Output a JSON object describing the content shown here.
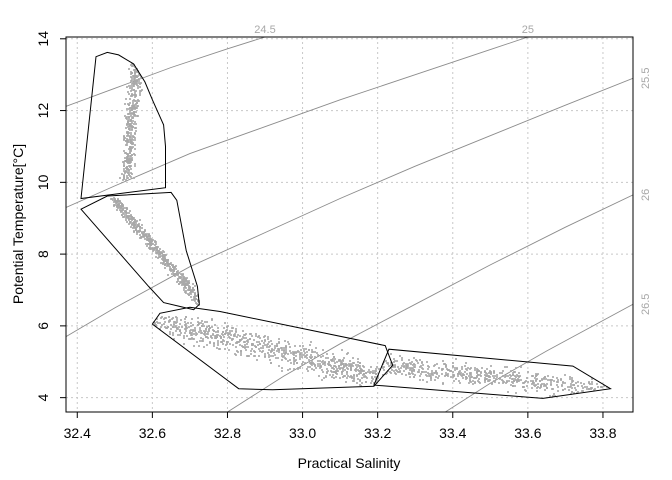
{
  "chart_data": {
    "type": "scatter",
    "title": "",
    "xlabel": "Practical Salinity",
    "ylabel": "Potential Temperature[°C]",
    "xlim": [
      32.37,
      33.88
    ],
    "ylim": [
      3.6,
      14.05
    ],
    "xticks": [
      32.4,
      32.6,
      32.8,
      33.0,
      33.2,
      33.4,
      33.6,
      33.8
    ],
    "xtick_labels": [
      "32.4",
      "32.6",
      "32.8",
      "33.0",
      "33.2",
      "33.4",
      "33.6",
      "33.8"
    ],
    "yticks": [
      4,
      6,
      8,
      10,
      12,
      14
    ],
    "ytick_labels": [
      "4",
      "6",
      "8",
      "10",
      "12",
      "14"
    ],
    "grid": true,
    "colors": {
      "points": "#a8a8a8",
      "isopycnal": "#8c8c8c",
      "grid": "#c8c8c8",
      "hull": "#000000"
    },
    "isopycnals": [
      {
        "label": "24.5",
        "points": [
          [
            32.37,
            12.12
          ],
          [
            32.5,
            12.62
          ],
          [
            32.65,
            13.2
          ],
          [
            32.8,
            13.72
          ],
          [
            32.9,
            14.05
          ]
        ]
      },
      {
        "label": "25",
        "points": [
          [
            32.37,
            9.3
          ],
          [
            32.5,
            9.9
          ],
          [
            32.7,
            10.8
          ],
          [
            32.9,
            11.55
          ],
          [
            33.1,
            12.3
          ],
          [
            33.3,
            13.0
          ],
          [
            33.5,
            13.7
          ],
          [
            33.6,
            14.05
          ]
        ]
      },
      {
        "label": "25.5",
        "points": [
          [
            32.37,
            5.7
          ],
          [
            32.5,
            6.5
          ],
          [
            32.7,
            7.65
          ],
          [
            32.9,
            8.6
          ],
          [
            33.1,
            9.55
          ],
          [
            33.3,
            10.45
          ],
          [
            33.5,
            11.3
          ],
          [
            33.7,
            12.15
          ],
          [
            33.88,
            12.9
          ]
        ]
      },
      {
        "label": "26",
        "points": [
          [
            32.8,
            3.6
          ],
          [
            32.95,
            4.6
          ],
          [
            33.1,
            5.5
          ],
          [
            33.3,
            6.6
          ],
          [
            33.5,
            7.7
          ],
          [
            33.7,
            8.75
          ],
          [
            33.88,
            9.65
          ]
        ]
      },
      {
        "label": "26.5",
        "points": [
          [
            33.38,
            3.6
          ],
          [
            33.5,
            4.4
          ],
          [
            33.65,
            5.3
          ],
          [
            33.8,
            6.15
          ],
          [
            33.88,
            6.6
          ]
        ]
      }
    ],
    "clusters": [
      {
        "hull": [
          [
            32.41,
            9.55
          ],
          [
            32.45,
            13.5
          ],
          [
            32.48,
            13.62
          ],
          [
            32.51,
            13.55
          ],
          [
            32.55,
            13.3
          ],
          [
            32.58,
            12.8
          ],
          [
            32.6,
            12.3
          ],
          [
            32.63,
            11.6
          ],
          [
            32.635,
            11.0
          ],
          [
            32.635,
            9.85
          ]
        ],
        "n": 380,
        "dir": [
          0.03,
          3.6
        ],
        "spread": 0.045
      },
      {
        "hull": [
          [
            32.41,
            9.25
          ],
          [
            32.48,
            9.62
          ],
          [
            32.65,
            9.72
          ],
          [
            32.665,
            9.5
          ],
          [
            32.69,
            8.1
          ],
          [
            32.72,
            7.1
          ],
          [
            32.725,
            6.6
          ],
          [
            32.71,
            6.45
          ],
          [
            32.67,
            6.55
          ],
          [
            32.63,
            6.65
          ],
          [
            32.59,
            7.1
          ]
        ],
        "n": 520,
        "dir": [
          0.24,
          -3.0
        ],
        "spread": 0.04
      },
      {
        "hull": [
          [
            32.6,
            6.05
          ],
          [
            32.62,
            6.35
          ],
          [
            32.7,
            6.52
          ],
          [
            32.78,
            6.4
          ],
          [
            33.22,
            5.45
          ],
          [
            33.24,
            4.9
          ],
          [
            33.19,
            4.32
          ],
          [
            32.92,
            4.22
          ],
          [
            32.83,
            4.25
          ]
        ],
        "n": 760,
        "dir": [
          0.6,
          -1.6
        ],
        "spread": 0.17
      },
      {
        "hull": [
          [
            33.19,
            4.35
          ],
          [
            33.23,
            5.35
          ],
          [
            33.72,
            4.88
          ],
          [
            33.82,
            4.25
          ],
          [
            33.64,
            3.98
          ]
        ],
        "n": 520,
        "dir": [
          0.6,
          -0.7
        ],
        "spread": 0.14
      }
    ]
  }
}
